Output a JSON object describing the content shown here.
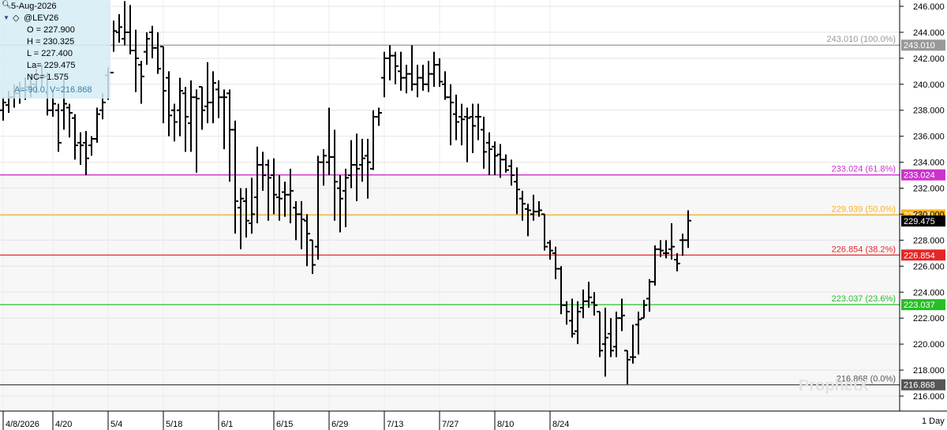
{
  "infobox": {
    "date": "5-Aug-2026",
    "symbol": "@LEV26",
    "open": "O  = 227.900",
    "high": "H  = 230.325",
    "low": "L  = 227.400",
    "last": "La= 229.475",
    "net_change": "NC= 1.575",
    "cursor": "A=-90.0, V=216.868"
  },
  "watermark": "ProphetX",
  "period": "1 Day",
  "chart_data": {
    "type": "ohlc",
    "y_range": [
      215.0,
      246.5
    ],
    "y_ticks": [
      "216.000",
      "218.000",
      "220.000",
      "222.000",
      "224.000",
      "226.000",
      "228.000",
      "230.000",
      "232.000",
      "234.000",
      "236.000",
      "238.000",
      "240.000",
      "242.000",
      "244.000",
      "246.000"
    ],
    "x_labels": [
      "4/8/2026",
      "4/20",
      "5/4",
      "5/18",
      "6/1",
      "6/15",
      "6/29",
      "7/13",
      "7/27",
      "8/10",
      "8/24"
    ],
    "last_price": {
      "value": 229.475,
      "label": "229.475"
    },
    "fib_levels": [
      {
        "value": 243.01,
        "label": "243.010 (100.0%)",
        "tag": "243.010",
        "color": "#999999"
      },
      {
        "value": 233.024,
        "label": "233.024 (61.8%)",
        "tag": "233.024",
        "color": "#cc33cc"
      },
      {
        "value": 229.939,
        "label": "229.939 (50.0%)",
        "tag": "229.939",
        "color": "#ffb31a"
      },
      {
        "value": 226.854,
        "label": "226.854 (38.2%)",
        "tag": "226.854",
        "color": "#e62626"
      },
      {
        "value": 223.037,
        "label": "223.037 (23.6%)",
        "tag": "223.037",
        "color": "#26c026"
      },
      {
        "value": 216.868,
        "label": "216.868 (0.0%)",
        "tag": "216.868",
        "color": "#555555"
      }
    ],
    "bars": [
      [
        0,
        238.0,
        239.0,
        237.2,
        238.6
      ],
      [
        1,
        238.4,
        239.5,
        237.8,
        239.0
      ],
      [
        2,
        239.0,
        240.0,
        238.2,
        239.3
      ],
      [
        3,
        239.3,
        240.2,
        238.5,
        239.5
      ],
      [
        4,
        239.5,
        240.5,
        238.8,
        239.8
      ],
      [
        5,
        239.8,
        240.8,
        239.0,
        240.0
      ],
      [
        6,
        240.0,
        241.2,
        239.3,
        240.5
      ],
      [
        7,
        240.5,
        241.5,
        239.8,
        240.7
      ],
      [
        8,
        240.6,
        240.9,
        237.6,
        238.0
      ],
      [
        9,
        238.0,
        239.5,
        237.5,
        238.5
      ],
      [
        10,
        238.0,
        238.5,
        234.8,
        235.5
      ],
      [
        11,
        238.0,
        240.4,
        236.5,
        238.5
      ],
      [
        12,
        238.2,
        238.5,
        235.9,
        237.8
      ],
      [
        13,
        237.4,
        237.7,
        234.2,
        235.3
      ],
      [
        14,
        235.5,
        236.3,
        233.8,
        235.3
      ],
      [
        15,
        235.5,
        236.4,
        233.0,
        234.3
      ],
      [
        16,
        235.3,
        236.0,
        234.5,
        235.8
      ],
      [
        17,
        235.8,
        238.2,
        235.5,
        237.7
      ],
      [
        18,
        238.0,
        239.3,
        237.3,
        238.6
      ],
      [
        19,
        240.7,
        241.3,
        238.8,
        240.9
      ],
      [
        20,
        240.9,
        244.9,
        242.5,
        244.1
      ],
      [
        21,
        244.0,
        245.4,
        243.2,
        244.4
      ],
      [
        22,
        243.5,
        246.4,
        243.0,
        244.0
      ],
      [
        23,
        244.0,
        246.1,
        242.3,
        242.6
      ],
      [
        24,
        242.6,
        244.2,
        239.4,
        242.0
      ],
      [
        25,
        241.5,
        241.8,
        238.5,
        240.6
      ],
      [
        26,
        242.5,
        244.0,
        241.5,
        243.5
      ],
      [
        27,
        244.0,
        244.5,
        242.0,
        242.8
      ],
      [
        28,
        242.8,
        244.0,
        240.8,
        241.2
      ],
      [
        29,
        242.9,
        242.9,
        237.0,
        239.5
      ],
      [
        30,
        240.5,
        241.0,
        236.0,
        237.6
      ],
      [
        31,
        238.0,
        238.5,
        235.6,
        237.1
      ],
      [
        32,
        238.0,
        240.5,
        236.0,
        239.5
      ],
      [
        33,
        239.3,
        239.8,
        234.8,
        237.5
      ],
      [
        34,
        237.0,
        240.3,
        234.8,
        239.0
      ],
      [
        35,
        239.0,
        239.6,
        233.2,
        238.9
      ],
      [
        36,
        239.8,
        239.8,
        236.5,
        238.0
      ],
      [
        37,
        238.3,
        241.7,
        237.0,
        238.6
      ],
      [
        38,
        238.6,
        241.0,
        237.0,
        240.1
      ],
      [
        39,
        239.6,
        240.3,
        237.4,
        239.0
      ],
      [
        40,
        239.0,
        239.6,
        235.0,
        239.0
      ],
      [
        41,
        239.3,
        239.6,
        232.5,
        236.5
      ],
      [
        42,
        236.5,
        237.2,
        228.5,
        231.0
      ],
      [
        43,
        230.5,
        232.0,
        227.3,
        231.2
      ],
      [
        44,
        231.0,
        232.0,
        228.2,
        229.5
      ],
      [
        45,
        229.3,
        232.8,
        228.5,
        230.0
      ],
      [
        46,
        231.3,
        235.2,
        229.3,
        233.8
      ],
      [
        47,
        233.8,
        234.8,
        231.8,
        233.0
      ],
      [
        48,
        233.8,
        234.2,
        229.5,
        232.8
      ],
      [
        49,
        233.0,
        234.3,
        230.0,
        231.5
      ],
      [
        50,
        231.3,
        233.0,
        229.5,
        231.2
      ],
      [
        51,
        231.7,
        232.5,
        229.8,
        231.5
      ],
      [
        52,
        231.5,
        233.5,
        229.3,
        231.8
      ],
      [
        53,
        230.5,
        231.0,
        228.0,
        230.0
      ],
      [
        54,
        230.0,
        231.0,
        227.3,
        229.6
      ],
      [
        55,
        229.5,
        230.0,
        226.0,
        228.5
      ],
      [
        56,
        228.0,
        228.0,
        225.4,
        226.1
      ],
      [
        57,
        227.5,
        234.5,
        226.5,
        234.0
      ],
      [
        58,
        234.0,
        235.0,
        232.2,
        234.5
      ],
      [
        59,
        234.0,
        238.2,
        233.0,
        234.4
      ],
      [
        60,
        234.4,
        236.5,
        229.5,
        232.5
      ],
      [
        61,
        232.0,
        233.0,
        228.6,
        231.2
      ],
      [
        62,
        231.8,
        233.5,
        229.0,
        232.8
      ],
      [
        63,
        233.0,
        235.7,
        232.0,
        233.8
      ],
      [
        64,
        233.8,
        236.2,
        231.0,
        233.5
      ],
      [
        65,
        233.8,
        235.8,
        232.5,
        234.3
      ],
      [
        66,
        234.5,
        235.8,
        231.2,
        234.0
      ],
      [
        67,
        233.5,
        238.0,
        233.4,
        237.5
      ],
      [
        68,
        237.5,
        238.2,
        236.8,
        237.8
      ],
      [
        69,
        240.5,
        242.5,
        239.0,
        242.0
      ],
      [
        70,
        242.0,
        243.0,
        240.3,
        242.2
      ],
      [
        71,
        242.2,
        242.5,
        240.0,
        241.4
      ],
      [
        72,
        241.0,
        242.5,
        239.5,
        240.5
      ],
      [
        73,
        240.5,
        241.5,
        239.3,
        240.8
      ],
      [
        74,
        240.8,
        243.0,
        239.5,
        240.0
      ],
      [
        75,
        240.0,
        241.5,
        239.0,
        240.5
      ],
      [
        76,
        240.5,
        241.5,
        239.5,
        240.0
      ],
      [
        77,
        240.0,
        241.8,
        239.4,
        240.8
      ],
      [
        78,
        240.8,
        242.5,
        239.8,
        241.5
      ],
      [
        79,
        241.5,
        242.0,
        239.8,
        240.2
      ],
      [
        80,
        240.0,
        241.0,
        238.8,
        239.0
      ],
      [
        81,
        239.0,
        240.0,
        235.3,
        238.6
      ],
      [
        82,
        237.7,
        239.2,
        235.7,
        237.1
      ],
      [
        83,
        237.5,
        238.5,
        235.3,
        237.3
      ],
      [
        84,
        237.5,
        238.2,
        234.0,
        237.4
      ],
      [
        85,
        237.5,
        238.5,
        234.7,
        236.8
      ],
      [
        86,
        237.5,
        238.5,
        235.7,
        237.5
      ],
      [
        87,
        236.5,
        237.5,
        233.5,
        234.8
      ],
      [
        88,
        235.5,
        236.3,
        233.0,
        235.0
      ],
      [
        89,
        235.2,
        235.6,
        233.0,
        234.5
      ],
      [
        90,
        234.6,
        235.4,
        232.8,
        234.2
      ],
      [
        91,
        234.2,
        234.6,
        233.2,
        233.4
      ],
      [
        92,
        233.7,
        234.2,
        232.2,
        233.0
      ],
      [
        93,
        232.5,
        233.6,
        230.0,
        231.9
      ],
      [
        94,
        231.2,
        231.8,
        229.5,
        230.8
      ],
      [
        95,
        230.4,
        230.8,
        228.3,
        230.3
      ],
      [
        96,
        230.0,
        231.5,
        229.5,
        230.2
      ],
      [
        97,
        230.2,
        231.0,
        229.8,
        230.3
      ],
      [
        98,
        230.0,
        230.0,
        227.2,
        227.5
      ],
      [
        99,
        227.8,
        228.0,
        226.5,
        227.2
      ],
      [
        100,
        227.0,
        227.5,
        225.0,
        225.8
      ],
      [
        101,
        225.8,
        226.0,
        222.3,
        223.0
      ],
      [
        102,
        223.0,
        223.3,
        221.5,
        222.5
      ],
      [
        103,
        221.8,
        223.5,
        220.5,
        220.8
      ],
      [
        104,
        221.0,
        223.3,
        220.0,
        222.5
      ],
      [
        105,
        222.8,
        224.2,
        222.0,
        223.3
      ],
      [
        106,
        223.3,
        224.8,
        222.8,
        223.6
      ],
      [
        107,
        223.2,
        224.0,
        222.2,
        223.0
      ],
      [
        108,
        222.5,
        222.5,
        219.0,
        219.5
      ],
      [
        109,
        220.0,
        222.8,
        217.5,
        220.5
      ],
      [
        110,
        220.8,
        222.0,
        219.0,
        219.5
      ],
      [
        111,
        219.8,
        222.5,
        219.0,
        222.0
      ],
      [
        112,
        222.0,
        223.5,
        221.0,
        222.2
      ],
      [
        113,
        219.5,
        219.5,
        216.9,
        218.8
      ],
      [
        114,
        219.0,
        221.5,
        218.5,
        219.0
      ],
      [
        115,
        221.5,
        222.5,
        219.2,
        221.9
      ],
      [
        116,
        222.0,
        223.4,
        222.0,
        223.0
      ],
      [
        117,
        223.5,
        225.0,
        222.5,
        224.8
      ],
      [
        118,
        224.8,
        227.6,
        224.5,
        227.3
      ],
      [
        119,
        227.3,
        228.0,
        226.7,
        227.2
      ],
      [
        120,
        227.0,
        228.0,
        226.6,
        227.0
      ],
      [
        121,
        227.3,
        229.3,
        226.5,
        227.5
      ],
      [
        122,
        226.5,
        227.0,
        225.6,
        226.2
      ],
      [
        123,
        228.0,
        228.5,
        226.8,
        228.0
      ],
      [
        124,
        228.0,
        230.3,
        227.4,
        229.5
      ]
    ]
  }
}
